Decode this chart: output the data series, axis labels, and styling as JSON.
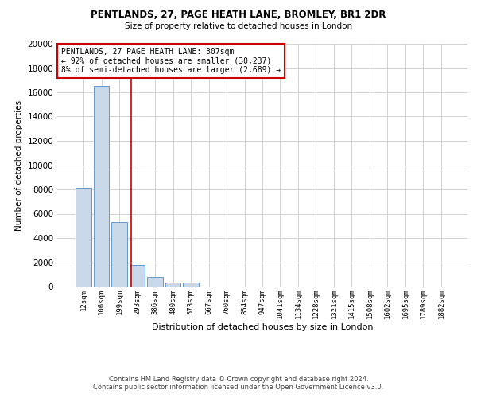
{
  "title1": "PENTLANDS, 27, PAGE HEATH LANE, BROMLEY, BR1 2DR",
  "title2": "Size of property relative to detached houses in London",
  "xlabel": "Distribution of detached houses by size in London",
  "ylabel": "Number of detached properties",
  "bar_labels": [
    "12sqm",
    "106sqm",
    "199sqm",
    "293sqm",
    "386sqm",
    "480sqm",
    "573sqm",
    "667sqm",
    "760sqm",
    "854sqm",
    "947sqm",
    "1041sqm",
    "1134sqm",
    "1228sqm",
    "1321sqm",
    "1415sqm",
    "1508sqm",
    "1602sqm",
    "1695sqm",
    "1789sqm",
    "1882sqm"
  ],
  "bar_values": [
    8100,
    16500,
    5300,
    1800,
    800,
    300,
    300,
    0,
    0,
    0,
    0,
    0,
    0,
    0,
    0,
    0,
    0,
    0,
    0,
    0,
    0
  ],
  "bar_color": "#c8d8e8",
  "bar_edge_color": "#6699cc",
  "property_line_x": 2.67,
  "property_line_color": "#cc0000",
  "annotation_line1": "PENTLANDS, 27 PAGE HEATH LANE: 307sqm",
  "annotation_line2": "← 92% of detached houses are smaller (30,237)",
  "annotation_line3": "8% of semi-detached houses are larger (2,689) →",
  "annotation_box_color": "#ffffff",
  "annotation_box_edge": "#cc0000",
  "ylim": [
    0,
    20000
  ],
  "yticks": [
    0,
    2000,
    4000,
    6000,
    8000,
    10000,
    12000,
    14000,
    16000,
    18000,
    20000
  ],
  "footer1": "Contains HM Land Registry data © Crown copyright and database right 2024.",
  "footer2": "Contains public sector information licensed under the Open Government Licence v3.0.",
  "bg_color": "#ffffff",
  "grid_color": "#cccccc"
}
